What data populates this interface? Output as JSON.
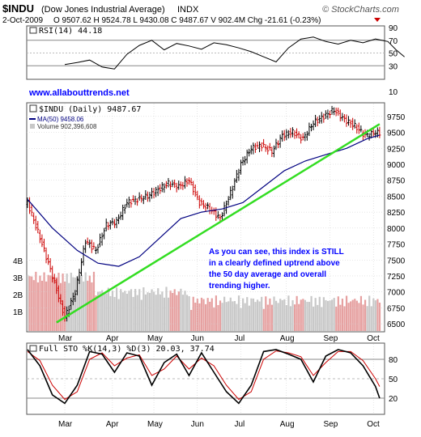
{
  "header": {
    "symbol": "$INDU",
    "name": "(Dow Jones Industrial Average)",
    "exchange": "INDX",
    "date": "2-Oct-2009",
    "quote_line": "O 9507.62  H 9524.78  L 9430.08  C 9487.67  V 902.4M  Chg -21.61 (-0.23%)",
    "copyright": "© StockCharts.com"
  },
  "colors": {
    "price_bar_up": "#000000",
    "price_bar_down": "#cc0000",
    "ma_line": "#000080",
    "trend_line": "#33dd22",
    "annotation_text": "#0000ff",
    "volume_up": "#c8c8c8",
    "volume_down": "#e6a0a0",
    "sto_k": "#000000",
    "sto_d": "#cc0000",
    "grid": "#cccccc",
    "link": "#0000ff"
  },
  "watermark": "www.allabouttrends.net",
  "annotation": [
    "As you can see, this index is STILL",
    "in a clearly defined uptrend above",
    "the 50 day average and overall",
    "trending higher."
  ],
  "chart_data": [
    {
      "type": "line",
      "panel": "RSI",
      "title": "RSI(14) 44.18",
      "y_ticks": [
        90,
        70,
        50,
        30,
        10
      ],
      "ylim": [
        10,
        90
      ],
      "reference_lines": [
        70,
        30
      ],
      "x": [
        0,
        6,
        12,
        18,
        24,
        30,
        36,
        42,
        48,
        54,
        60,
        66,
        72,
        78,
        84,
        90,
        96,
        102,
        108,
        114,
        120,
        126,
        132,
        138,
        144,
        150,
        156,
        160,
        164
      ],
      "values": [
        32,
        35,
        39,
        28,
        25,
        48,
        62,
        70,
        55,
        65,
        61,
        56,
        66,
        63,
        58,
        52,
        44,
        36,
        58,
        72,
        75,
        68,
        64,
        70,
        66,
        72,
        68,
        55,
        44
      ]
    },
    {
      "type": "line",
      "panel": "Price",
      "title": "$INDU (Daily) 9487.67",
      "legend": [
        {
          "name": "MA(50) 9458.06",
          "color": "#000080"
        },
        {
          "name": "Volume 902,396,608",
          "color": "#c8c8c8"
        }
      ],
      "x_labels": [
        "Mar",
        "Apr",
        "May",
        "Jun",
        "Jul",
        "Aug",
        "Sep",
        "Oct"
      ],
      "x_label_index": [
        0,
        23,
        43,
        64,
        85,
        107,
        128,
        149
      ],
      "y_ticks": [
        9750,
        9500,
        9250,
        9000,
        8750,
        8500,
        8250,
        8000,
        7750,
        7500,
        7250,
        7000,
        6750,
        6500
      ],
      "ylim": [
        6400,
        9900
      ],
      "volume_axis_labels": [
        "4B",
        "3B",
        "2B",
        "1B"
      ],
      "close_series": {
        "x": [
          -18,
          -12,
          -6,
          0,
          5,
          10,
          15,
          20,
          25,
          30,
          35,
          40,
          45,
          50,
          55,
          60,
          65,
          70,
          75,
          80,
          85,
          90,
          95,
          100,
          105,
          110,
          115,
          120,
          125,
          130,
          135,
          140,
          145,
          150,
          152
        ],
        "values": [
          8400,
          7850,
          7250,
          6600,
          7000,
          7800,
          7650,
          8050,
          8100,
          8400,
          8450,
          8500,
          8600,
          8700,
          8650,
          8750,
          8400,
          8300,
          8150,
          8550,
          9000,
          9250,
          9300,
          9200,
          9450,
          9500,
          9400,
          9650,
          9750,
          9850,
          9700,
          9600,
          9450,
          9500,
          9488
        ]
      },
      "ma50_series": {
        "x": [
          -18,
          -6,
          6,
          16,
          26,
          36,
          46,
          56,
          66,
          76,
          86,
          96,
          106,
          116,
          126,
          136,
          146,
          152
        ],
        "values": [
          8450,
          8000,
          7650,
          7450,
          7400,
          7550,
          7850,
          8150,
          8250,
          8300,
          8400,
          8650,
          8900,
          9050,
          9150,
          9250,
          9400,
          9458
        ]
      },
      "trend_line": {
        "x": [
          -4,
          152
        ],
        "values": [
          6520,
          9630
        ]
      }
    },
    {
      "type": "line",
      "panel": "Stochastic",
      "title": "Full STO %K(14,3) %D(3) 20.03, 37.74",
      "y_ticks": [
        80,
        50,
        20
      ],
      "ylim": [
        0,
        100
      ],
      "x": [
        -18,
        -12,
        -6,
        0,
        6,
        12,
        18,
        24,
        30,
        36,
        42,
        48,
        54,
        60,
        66,
        72,
        78,
        84,
        90,
        96,
        102,
        108,
        114,
        120,
        126,
        132,
        138,
        144,
        150,
        152
      ],
      "k_values": [
        95,
        70,
        25,
        12,
        40,
        92,
        88,
        60,
        90,
        85,
        40,
        75,
        88,
        55,
        90,
        60,
        30,
        12,
        40,
        92,
        95,
        88,
        80,
        45,
        85,
        95,
        90,
        70,
        38,
        20
      ],
      "d_values": [
        92,
        78,
        40,
        18,
        30,
        80,
        90,
        70,
        82,
        87,
        55,
        65,
        85,
        65,
        82,
        70,
        40,
        18,
        30,
        80,
        93,
        90,
        84,
        55,
        75,
        92,
        92,
        78,
        50,
        38
      ]
    }
  ]
}
